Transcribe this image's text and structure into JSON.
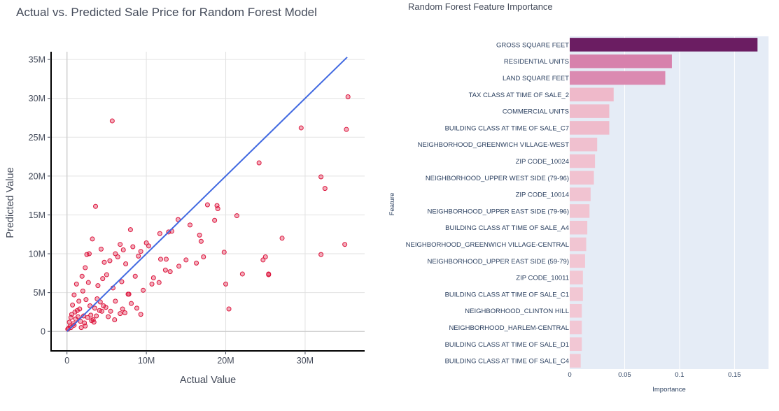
{
  "chart_data": [
    {
      "type": "scatter",
      "title": "Actual vs. Predicted Sale Price for Random Forest Model",
      "xlabel": "Actual Value",
      "ylabel": "Predicted Value",
      "xlim": [
        -2000000,
        37500000
      ],
      "ylim": [
        -2500000,
        36000000
      ],
      "x_ticks": [
        "0",
        "10M",
        "20M",
        "30M"
      ],
      "x_tick_values": [
        0,
        10000000,
        20000000,
        30000000
      ],
      "y_ticks": [
        "0",
        "5M",
        "10M",
        "15M",
        "20M",
        "25M",
        "30M",
        "35M"
      ],
      "y_tick_values": [
        0,
        5000000,
        10000000,
        15000000,
        20000000,
        25000000,
        30000000,
        35000000
      ],
      "grid": true,
      "marker_color": "#dc143c",
      "line_color": "#4169e1",
      "reference_line": {
        "x": [
          0,
          35300000
        ],
        "y": [
          0,
          35300000
        ]
      },
      "series": [
        {
          "x": [
            5700000,
            3600000,
            29500000,
            24200000,
            35200000,
            35400000,
            32000000,
            32500000,
            35000000,
            32000000,
            17700000,
            18900000,
            19000000,
            21400000,
            14000000,
            12800000,
            13200000,
            15500000,
            16700000,
            16900000,
            18600000,
            11700000,
            12500000,
            15000000,
            16300000,
            17200000,
            19800000,
            20000000,
            20400000,
            22100000,
            24700000,
            25000000,
            25400000,
            25400000,
            27100000,
            8000000,
            6700000,
            7100000,
            8300000,
            9300000,
            10000000,
            6100000,
            5400000,
            4300000,
            3200000,
            4700000,
            6400000,
            7400000,
            9000000,
            10300000,
            11800000,
            13000000,
            14100000,
            10900000,
            12400000,
            11600000,
            10700000,
            8600000,
            9600000,
            7700000,
            6900000,
            5800000,
            4500000,
            3900000,
            2500000,
            2800000,
            1900000,
            1200000,
            2300000,
            5000000,
            6100000,
            7800000,
            8800000,
            9300000,
            7000000,
            8100000,
            6700000,
            5200000,
            4100000,
            3300000,
            3800000,
            4600000,
            5500000,
            6000000,
            7300000,
            2000000,
            1500000,
            900000,
            1000000,
            2700000,
            3500000,
            500000,
            700000,
            1600000,
            2400000,
            3000000,
            2900000,
            4200000,
            200000,
            300000,
            400000,
            600000,
            800000,
            1100000,
            1300000,
            1700000,
            2100000,
            2200000,
            2600000,
            100000,
            500000,
            900000,
            1400000,
            1800000,
            2300000,
            3100000,
            3400000,
            3700000,
            4400000,
            4900000
          ],
          "y": [
            27100000,
            16100000,
            26200000,
            21700000,
            26000000,
            30200000,
            19900000,
            18400000,
            11200000,
            9900000,
            16300000,
            16200000,
            15800000,
            14900000,
            14400000,
            12800000,
            12900000,
            13700000,
            12400000,
            11600000,
            14300000,
            12600000,
            9300000,
            9200000,
            8800000,
            9600000,
            10200000,
            6100000,
            2900000,
            7400000,
            9200000,
            9600000,
            7300000,
            7400000,
            12000000,
            13100000,
            11200000,
            10500000,
            10900000,
            10300000,
            11400000,
            10000000,
            9100000,
            10600000,
            11900000,
            8900000,
            9600000,
            8700000,
            9700000,
            11000000,
            9300000,
            7700000,
            8400000,
            6900000,
            7900000,
            6300000,
            6100000,
            7100000,
            5300000,
            4800000,
            6400000,
            5600000,
            6800000,
            5900000,
            9900000,
            10000000,
            7100000,
            6100000,
            8200000,
            7300000,
            3900000,
            4800000,
            3000000,
            2200000,
            2900000,
            3600000,
            2300000,
            1900000,
            2700000,
            1500000,
            4200000,
            3300000,
            2600000,
            1500000,
            2400000,
            5200000,
            3900000,
            4700000,
            2500000,
            6300000,
            3000000,
            1800000,
            3400000,
            2900000,
            4100000,
            2100000,
            3300000,
            3800000,
            400000,
            1200000,
            700000,
            2200000,
            1000000,
            1600000,
            2700000,
            1300000,
            2000000,
            1100000,
            1800000,
            300000,
            500000,
            800000,
            1900000,
            500000,
            700000,
            1400000,
            1200000,
            2000000,
            2600000,
            3100000
          ]
        }
      ]
    },
    {
      "type": "bar",
      "orientation": "horizontal",
      "title": "Random Forest Feature Importance",
      "xlabel": "Importance",
      "ylabel": "Feature",
      "xlim": [
        0,
        0.181
      ],
      "x_ticks": [
        "0",
        "0.05",
        "0.1",
        "0.15"
      ],
      "x_tick_values": [
        0,
        0.05,
        0.1,
        0.15
      ],
      "grid": true,
      "categories": [
        "GROSS SQUARE FEET",
        "RESIDENTIAL UNITS",
        "LAND SQUARE FEET",
        "TAX CLASS AT TIME OF SALE_2",
        "COMMERCIAL UNITS",
        "BUILDING CLASS AT TIME OF SALE_C7",
        "NEIGHBORHOOD_GREENWICH VILLAGE-WEST",
        "ZIP CODE_10024",
        "NEIGHBORHOOD_UPPER WEST SIDE (79-96)",
        "ZIP CODE_10014",
        "NEIGHBORHOOD_UPPER EAST SIDE (79-96)",
        "BUILDING CLASS AT TIME OF SALE_A4",
        "NEIGHBORHOOD_GREENWICH VILLAGE-CENTRAL",
        "NEIGHBORHOOD_UPPER EAST SIDE (59-79)",
        "ZIP CODE_10011",
        "BUILDING CLASS AT TIME OF SALE_C1",
        "NEIGHBORHOOD_CLINTON HILL",
        "NEIGHBORHOOD_HARLEM-CENTRAL",
        "BUILDING CLASS AT TIME OF SALE_D1",
        "BUILDING CLASS AT TIME OF SALE_C4"
      ],
      "values": [
        0.171,
        0.093,
        0.087,
        0.04,
        0.036,
        0.036,
        0.025,
        0.023,
        0.022,
        0.019,
        0.018,
        0.016,
        0.015,
        0.014,
        0.012,
        0.012,
        0.011,
        0.011,
        0.011,
        0.01
      ],
      "colorscale": [
        "#f2c8d4",
        "#ecadc2",
        "#c65d9a",
        "#6b1d62"
      ]
    }
  ]
}
